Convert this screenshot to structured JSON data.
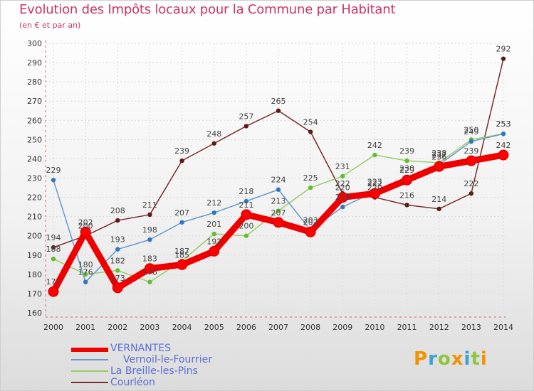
{
  "title": "Evolution des Impôts locaux pour la Commune par Habitant",
  "subtitle": "(en € et par an)",
  "brand": {
    "letters": [
      "P",
      "r",
      "o",
      "x",
      "i",
      "t",
      "i"
    ],
    "colors": [
      "#f39200",
      "#3aa1d9",
      "#8dc63f",
      "#f39200",
      "#3aa1d9",
      "#8dc63f",
      "#f39200"
    ]
  },
  "chart_data": {
    "type": "line",
    "title": "Evolution des Impôts locaux pour la Commune par Habitant",
    "subtitle": "(en € et par an)",
    "xlabel": "",
    "ylabel": "",
    "ylim": [
      160,
      300
    ],
    "ystep": 10,
    "grid": true,
    "legend_position": "bottom-left",
    "categories": [
      "2000",
      "2001",
      "2002",
      "2003",
      "2004",
      "2005",
      "2006",
      "2007",
      "2008",
      "2009",
      "2010",
      "2011",
      "2012",
      "2013",
      "2014"
    ],
    "series": [
      {
        "name": "VERNANTES",
        "color": "#ee0000",
        "marker": "#ff0000",
        "values": [
          171,
          202,
          173,
          183,
          185,
          192,
          211,
          207,
          202,
          220,
          222,
          229,
          236,
          239,
          242
        ],
        "labels": [
          "171",
          "202",
          "173",
          "183",
          "185",
          "192",
          "211",
          "207",
          "202",
          "220",
          "222",
          "229",
          "236",
          "239",
          "242"
        ]
      },
      {
        "name": "Vernoil-le-Fourrier",
        "color": "#6699cc",
        "marker": "#3377bb",
        "values": [
          229,
          176,
          193,
          198,
          207,
          212,
          218,
          224,
          203,
          215,
          223,
          230,
          237,
          249,
          253
        ],
        "labels": [
          "229",
          "176",
          "193",
          "198",
          "207",
          "212",
          "218",
          "224",
          "203",
          "215",
          "223",
          "230",
          "237",
          "249",
          "253"
        ]
      },
      {
        "name": "La Breille-les-Pins",
        "color": "#99cc66",
        "marker": "#66bb33",
        "values": [
          188,
          180,
          182,
          176,
          187,
          201,
          200,
          213,
          225,
          231,
          242,
          239,
          238,
          250,
          253
        ],
        "labels": [
          "188",
          "180",
          "182",
          "176",
          "187",
          "201",
          "200",
          "213",
          "225",
          "231",
          "242",
          "239",
          "238",
          "250",
          "253"
        ]
      },
      {
        "name": "Courléon",
        "color": "#7a2a2a",
        "marker": "#5c1a1a",
        "values": [
          194,
          200,
          208,
          211,
          239,
          248,
          257,
          265,
          254,
          222,
          220,
          216,
          214,
          222,
          292
        ],
        "labels": [
          "194",
          "200",
          "208",
          "211",
          "239",
          "248",
          "257",
          "265",
          "254",
          "222",
          "220",
          "216",
          "214",
          "222",
          "292"
        ]
      }
    ]
  }
}
